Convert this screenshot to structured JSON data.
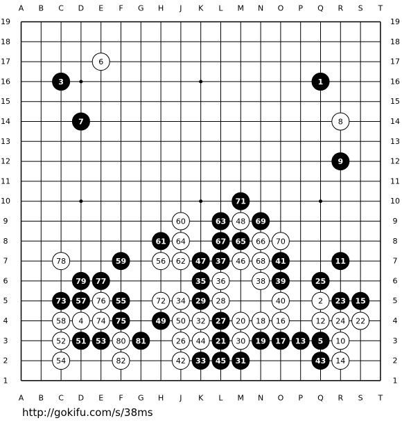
{
  "board": {
    "columns": [
      "A",
      "B",
      "C",
      "D",
      "E",
      "F",
      "G",
      "H",
      "J",
      "K",
      "L",
      "M",
      "N",
      "O",
      "P",
      "Q",
      "R",
      "S",
      "T"
    ],
    "rows": [
      "19",
      "18",
      "17",
      "16",
      "15",
      "14",
      "13",
      "12",
      "11",
      "10",
      "9",
      "8",
      "7",
      "6",
      "5",
      "4",
      "3",
      "2",
      "1"
    ],
    "stones": [
      {
        "label": "1",
        "col": "Q",
        "row": "16",
        "color": "black"
      },
      {
        "label": "2",
        "col": "Q",
        "row": "5",
        "color": "white"
      },
      {
        "label": "3",
        "col": "C",
        "row": "16",
        "color": "black"
      },
      {
        "label": "4",
        "col": "D",
        "row": "4",
        "color": "white"
      },
      {
        "label": "5",
        "col": "Q",
        "row": "3",
        "color": "black"
      },
      {
        "label": "6",
        "col": "E",
        "row": "17",
        "color": "white"
      },
      {
        "label": "7",
        "col": "D",
        "row": "14",
        "color": "black"
      },
      {
        "label": "8",
        "col": "R",
        "row": "14",
        "color": "white"
      },
      {
        "label": "9",
        "col": "R",
        "row": "12",
        "color": "black"
      },
      {
        "label": "10",
        "col": "R",
        "row": "3",
        "color": "white"
      },
      {
        "label": "11",
        "col": "R",
        "row": "7",
        "color": "black"
      },
      {
        "label": "12",
        "col": "Q",
        "row": "4",
        "color": "white"
      },
      {
        "label": "13",
        "col": "P",
        "row": "3",
        "color": "black"
      },
      {
        "label": "14",
        "col": "R",
        "row": "2",
        "color": "white"
      },
      {
        "label": "15",
        "col": "S",
        "row": "5",
        "color": "black"
      },
      {
        "label": "16",
        "col": "O",
        "row": "4",
        "color": "white"
      },
      {
        "label": "17",
        "col": "O",
        "row": "3",
        "color": "black"
      },
      {
        "label": "18",
        "col": "N",
        "row": "4",
        "color": "white"
      },
      {
        "label": "19",
        "col": "N",
        "row": "3",
        "color": "black"
      },
      {
        "label": "20",
        "col": "M",
        "row": "4",
        "color": "white"
      },
      {
        "label": "21",
        "col": "L",
        "row": "3",
        "color": "black"
      },
      {
        "label": "22",
        "col": "S",
        "row": "4",
        "color": "white"
      },
      {
        "label": "23",
        "col": "R",
        "row": "5",
        "color": "black"
      },
      {
        "label": "24",
        "col": "R",
        "row": "4",
        "color": "white"
      },
      {
        "label": "25",
        "col": "Q",
        "row": "6",
        "color": "black"
      },
      {
        "label": "26",
        "col": "J",
        "row": "3",
        "color": "white"
      },
      {
        "label": "27",
        "col": "L",
        "row": "4",
        "color": "black"
      },
      {
        "label": "28",
        "col": "L",
        "row": "5",
        "color": "white"
      },
      {
        "label": "29",
        "col": "K",
        "row": "5",
        "color": "black"
      },
      {
        "label": "30",
        "col": "M",
        "row": "3",
        "color": "white"
      },
      {
        "label": "31",
        "col": "M",
        "row": "2",
        "color": "black"
      },
      {
        "label": "32",
        "col": "K",
        "row": "4",
        "color": "white"
      },
      {
        "label": "33",
        "col": "K",
        "row": "2",
        "color": "black"
      },
      {
        "label": "34",
        "col": "J",
        "row": "5",
        "color": "white"
      },
      {
        "label": "35",
        "col": "K",
        "row": "6",
        "color": "black"
      },
      {
        "label": "36",
        "col": "L",
        "row": "6",
        "color": "white"
      },
      {
        "label": "37",
        "col": "L",
        "row": "7",
        "color": "black"
      },
      {
        "label": "38",
        "col": "N",
        "row": "6",
        "color": "white"
      },
      {
        "label": "39",
        "col": "O",
        "row": "6",
        "color": "black"
      },
      {
        "label": "40",
        "col": "O",
        "row": "5",
        "color": "white"
      },
      {
        "label": "41",
        "col": "O",
        "row": "7",
        "color": "black"
      },
      {
        "label": "42",
        "col": "J",
        "row": "2",
        "color": "white"
      },
      {
        "label": "43",
        "col": "Q",
        "row": "2",
        "color": "black"
      },
      {
        "label": "44",
        "col": "K",
        "row": "3",
        "color": "white"
      },
      {
        "label": "45",
        "col": "L",
        "row": "2",
        "color": "black"
      },
      {
        "label": "46",
        "col": "M",
        "row": "7",
        "color": "white"
      },
      {
        "label": "47",
        "col": "K",
        "row": "7",
        "color": "black"
      },
      {
        "label": "48",
        "col": "M",
        "row": "9",
        "color": "white"
      },
      {
        "label": "49",
        "col": "H",
        "row": "4",
        "color": "black"
      },
      {
        "label": "50",
        "col": "J",
        "row": "4",
        "color": "white"
      },
      {
        "label": "51",
        "col": "D",
        "row": "3",
        "color": "black"
      },
      {
        "label": "52",
        "col": "C",
        "row": "3",
        "color": "white"
      },
      {
        "label": "53",
        "col": "E",
        "row": "3",
        "color": "black"
      },
      {
        "label": "54",
        "col": "C",
        "row": "2",
        "color": "white"
      },
      {
        "label": "55",
        "col": "F",
        "row": "5",
        "color": "black"
      },
      {
        "label": "56",
        "col": "H",
        "row": "7",
        "color": "white"
      },
      {
        "label": "57",
        "col": "D",
        "row": "5",
        "color": "black"
      },
      {
        "label": "58",
        "col": "C",
        "row": "4",
        "color": "white"
      },
      {
        "label": "59",
        "col": "F",
        "row": "7",
        "color": "black"
      },
      {
        "label": "60",
        "col": "J",
        "row": "9",
        "color": "white"
      },
      {
        "label": "61",
        "col": "H",
        "row": "8",
        "color": "black"
      },
      {
        "label": "62",
        "col": "J",
        "row": "7",
        "color": "white"
      },
      {
        "label": "63",
        "col": "L",
        "row": "9",
        "color": "black"
      },
      {
        "label": "64",
        "col": "J",
        "row": "8",
        "color": "white"
      },
      {
        "label": "65",
        "col": "M",
        "row": "8",
        "color": "black"
      },
      {
        "label": "66",
        "col": "N",
        "row": "8",
        "color": "white"
      },
      {
        "label": "67",
        "col": "L",
        "row": "8",
        "color": "black"
      },
      {
        "label": "68",
        "col": "N",
        "row": "7",
        "color": "white"
      },
      {
        "label": "69",
        "col": "N",
        "row": "9",
        "color": "black"
      },
      {
        "label": "70",
        "col": "O",
        "row": "8",
        "color": "white"
      },
      {
        "label": "71",
        "col": "M",
        "row": "10",
        "color": "black"
      },
      {
        "label": "72",
        "col": "H",
        "row": "5",
        "color": "white"
      },
      {
        "label": "73",
        "col": "C",
        "row": "5",
        "color": "black"
      },
      {
        "label": "74",
        "col": "E",
        "row": "4",
        "color": "white"
      },
      {
        "label": "75",
        "col": "F",
        "row": "4",
        "color": "black"
      },
      {
        "label": "76",
        "col": "E",
        "row": "5",
        "color": "white"
      },
      {
        "label": "77",
        "col": "E",
        "row": "6",
        "color": "black"
      },
      {
        "label": "78",
        "col": "C",
        "row": "7",
        "color": "white"
      },
      {
        "label": "79",
        "col": "D",
        "row": "6",
        "color": "black"
      },
      {
        "label": "80",
        "col": "F",
        "row": "3",
        "color": "white"
      },
      {
        "label": "81",
        "col": "G",
        "row": "3",
        "color": "black"
      },
      {
        "label": "82",
        "col": "F",
        "row": "2",
        "color": "white"
      }
    ]
  },
  "footer": {
    "url": "http://gokifu.com/s/38ms"
  }
}
